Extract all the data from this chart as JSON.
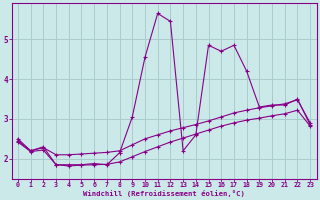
{
  "xlabel": "Windchill (Refroidissement éolien,°C)",
  "background_color": "#cce9e9",
  "grid_color": "#aacccc",
  "line_color": "#880088",
  "xlim": [
    -0.5,
    23.5
  ],
  "ylim": [
    1.5,
    5.9
  ],
  "xticks": [
    0,
    1,
    2,
    3,
    4,
    5,
    6,
    7,
    8,
    9,
    10,
    11,
    12,
    13,
    14,
    15,
    16,
    17,
    18,
    19,
    20,
    21,
    22,
    23
  ],
  "yticks": [
    2,
    3,
    4,
    5
  ],
  "line1_x": [
    0,
    1,
    2,
    3,
    4,
    5,
    6,
    7,
    8,
    9,
    10,
    11,
    12,
    13,
    14,
    15,
    16,
    17,
    18,
    19,
    20,
    21,
    22,
    23
  ],
  "line1_y": [
    2.5,
    2.2,
    2.3,
    1.85,
    1.85,
    1.85,
    1.88,
    1.85,
    2.15,
    3.05,
    4.55,
    5.65,
    5.45,
    2.2,
    2.6,
    4.85,
    4.7,
    4.85,
    4.2,
    3.3,
    3.35,
    3.35,
    3.5,
    2.85
  ],
  "line2_x": [
    0,
    1,
    2,
    3,
    4,
    5,
    6,
    7,
    8,
    9,
    10,
    11,
    12,
    13,
    14,
    15,
    16,
    17,
    18,
    19,
    20,
    21,
    22,
    23
  ],
  "line2_y": [
    2.45,
    2.2,
    2.28,
    2.1,
    2.1,
    2.12,
    2.14,
    2.16,
    2.2,
    2.35,
    2.5,
    2.6,
    2.7,
    2.78,
    2.86,
    2.95,
    3.05,
    3.15,
    3.22,
    3.28,
    3.33,
    3.38,
    3.48,
    2.9
  ],
  "line3_x": [
    0,
    1,
    2,
    3,
    4,
    5,
    6,
    7,
    8,
    9,
    10,
    11,
    12,
    13,
    14,
    15,
    16,
    17,
    18,
    19,
    20,
    21,
    22,
    23
  ],
  "line3_y": [
    2.42,
    2.18,
    2.22,
    1.85,
    1.82,
    1.84,
    1.85,
    1.86,
    1.92,
    2.05,
    2.18,
    2.3,
    2.42,
    2.52,
    2.62,
    2.72,
    2.82,
    2.9,
    2.97,
    3.02,
    3.08,
    3.13,
    3.22,
    2.82
  ]
}
